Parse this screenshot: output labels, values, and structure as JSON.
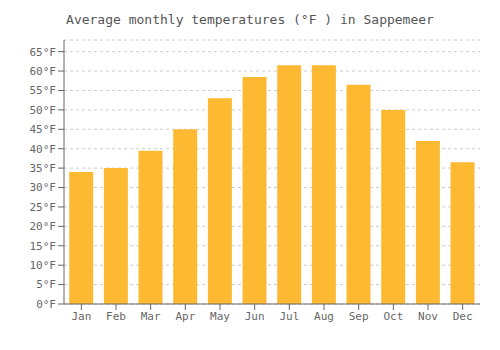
{
  "chart_data": {
    "type": "bar",
    "title": "Average monthly temperatures (°F ) in Sappemeer",
    "categories": [
      "Jan",
      "Feb",
      "Mar",
      "Apr",
      "May",
      "Jun",
      "Jul",
      "Aug",
      "Sep",
      "Oct",
      "Nov",
      "Dec"
    ],
    "values": [
      34,
      35,
      39.5,
      45,
      53,
      58.5,
      61.5,
      61.5,
      56.5,
      50,
      42,
      36.5
    ],
    "color": "#FDB932",
    "ylim": [
      0,
      68
    ],
    "yticks": [
      {
        "value": 0,
        "label": "0°F"
      },
      {
        "value": 5,
        "label": "5°F"
      },
      {
        "value": 10,
        "label": "10°F"
      },
      {
        "value": 15,
        "label": "15°F"
      },
      {
        "value": 20,
        "label": "20°F"
      },
      {
        "value": 25,
        "label": "25°F"
      },
      {
        "value": 30,
        "label": "30°F"
      },
      {
        "value": 35,
        "label": "35°F"
      },
      {
        "value": 40,
        "label": "40°F"
      },
      {
        "value": 45,
        "label": "45°F"
      },
      {
        "value": 50,
        "label": "50°F"
      },
      {
        "value": 55,
        "label": "55°F"
      },
      {
        "value": 60,
        "label": "60°F"
      },
      {
        "value": 65,
        "label": "65°F"
      }
    ],
    "grid": true
  }
}
